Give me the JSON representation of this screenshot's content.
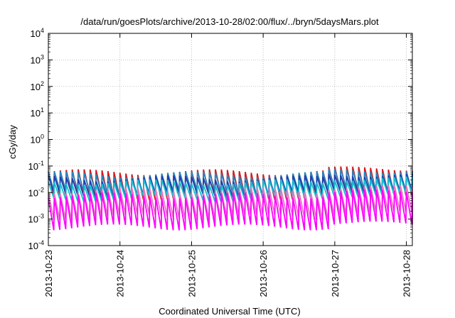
{
  "chart_data": {
    "type": "line",
    "title": "/data/run/goesPlots/archive/2013-10-28/02:00/flux/../bryn/5daysMars.plot",
    "xlabel": "Coordinated Universal Time (UTC)",
    "ylabel": "cGy/day",
    "yscale": "log",
    "ylim": [
      0.0001,
      10000
    ],
    "xlim": [
      "2013-10-23T00:00",
      "2013-10-28T02:00"
    ],
    "grid": true,
    "x_ticks": [
      "2013-10-23",
      "2013-10-24",
      "2013-10-25",
      "2013-10-26",
      "2013-10-27",
      "2013-10-28"
    ],
    "y_ticks": [
      {
        "base": "10",
        "exp": "-4"
      },
      {
        "base": "10",
        "exp": "-3"
      },
      {
        "base": "10",
        "exp": "-2"
      },
      {
        "base": "10",
        "exp": "-1"
      },
      {
        "base": "10",
        "exp": "0"
      },
      {
        "base": "10",
        "exp": "1"
      },
      {
        "base": "10",
        "exp": "2"
      },
      {
        "base": "10",
        "exp": "3"
      },
      {
        "base": "10",
        "exp": "4"
      }
    ],
    "sawtooth_period_hours": 2,
    "series": [
      {
        "color": "#d7191c",
        "peak": 0.06,
        "trough": 0.007
      },
      {
        "color": "#2b83ba",
        "peak": 0.05,
        "trough": 0.01
      },
      {
        "color": "#1f3fb0",
        "peak": 0.035,
        "trough": 0.008
      },
      {
        "color": "#17becf",
        "peak": 0.025,
        "trough": 0.006
      },
      {
        "color": "#e377c2",
        "peak": 0.012,
        "trough": 0.0012
      },
      {
        "color": "#ff00ff",
        "peak": 0.008,
        "trough": 0.0005
      }
    ]
  }
}
